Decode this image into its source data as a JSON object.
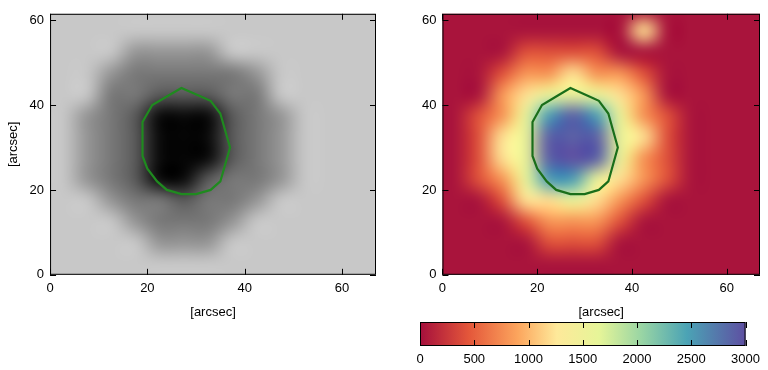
{
  "chart_data": [
    {
      "type": "heatmap",
      "color": "gray",
      "xlabel": "[arcsec]",
      "ylabel": "[arcsec]",
      "xlim": [
        0,
        67
      ],
      "ylim": [
        0,
        61.5
      ],
      "xticks": [
        0,
        20,
        40,
        60
      ],
      "yticks": [
        0,
        20,
        40,
        60
      ],
      "x": [
        2.5,
        7.5,
        12.5,
        17.5,
        22.5,
        27.5,
        32.5,
        37.5,
        42.5,
        47.5,
        52.5,
        57.5,
        62.5,
        67.5
      ],
      "y": [
        2.5,
        7.5,
        12.5,
        17.5,
        22.5,
        27.5,
        32.5,
        37.5,
        42.5,
        47.5,
        52.5,
        57.5,
        62.5
      ],
      "cells": [
        [
          1,
          1,
          1,
          1,
          1,
          1,
          1,
          1,
          1,
          1,
          1,
          1,
          1,
          1
        ],
        [
          1,
          1,
          1,
          1,
          0.75,
          0.75,
          0.75,
          1,
          1,
          1,
          1,
          1,
          1,
          1
        ],
        [
          1,
          1,
          1,
          0.75,
          0.6,
          0.6,
          0.6,
          0.75,
          1,
          1,
          1,
          1,
          1,
          1
        ],
        [
          1,
          1,
          0.75,
          0.6,
          0.6,
          0.45,
          0.6,
          0.6,
          0.75,
          1,
          1,
          1,
          1,
          1
        ],
        [
          1,
          0.75,
          0.6,
          0.45,
          0.05,
          0.05,
          0.45,
          0.6,
          0.6,
          0.75,
          1,
          1,
          1,
          1
        ],
        [
          1,
          0.75,
          0.6,
          0.45,
          0.05,
          0.02,
          0.05,
          0.45,
          0.6,
          0.75,
          1,
          1,
          1,
          1
        ],
        [
          1,
          0.75,
          0.6,
          0.45,
          0.05,
          0.02,
          0.05,
          0.45,
          0.6,
          0.75,
          1,
          1,
          1,
          1
        ],
        [
          1,
          0.75,
          0.6,
          0.45,
          0.05,
          0.05,
          0.05,
          0.45,
          0.6,
          0.75,
          1,
          1,
          1,
          1
        ],
        [
          1,
          1,
          0.6,
          0.6,
          0.45,
          0.45,
          0.45,
          0.6,
          0.6,
          1,
          1,
          1,
          1,
          1
        ],
        [
          1,
          1,
          0.75,
          0.6,
          0.6,
          0.6,
          0.6,
          0.6,
          0.75,
          1,
          1,
          1,
          1,
          1
        ],
        [
          1,
          1,
          1,
          0.75,
          0.75,
          0.75,
          0.75,
          1,
          1,
          1,
          1,
          1,
          1,
          1
        ],
        [
          1,
          1,
          1,
          1,
          1,
          1,
          1,
          1,
          1,
          1,
          1,
          1,
          1,
          1
        ],
        [
          1,
          1,
          1,
          1,
          1,
          1,
          1,
          1,
          1,
          1,
          1,
          1,
          1,
          1
        ]
      ],
      "contour": {
        "color": "#1f8a1f",
        "x": [
          19,
          19,
          21,
          24,
          27,
          29,
          31,
          33,
          35,
          36,
          37,
          36,
          35,
          33,
          30,
          27,
          24,
          22,
          20,
          19
        ],
        "y": [
          31,
          36,
          40,
          42,
          44,
          43,
          42,
          41,
          38,
          34,
          30,
          26,
          22,
          20,
          19,
          19,
          20,
          22,
          25,
          28
        ]
      }
    },
    {
      "type": "heatmap",
      "color": "spectral",
      "xlabel": "[arcsec]",
      "xlim": [
        0,
        67
      ],
      "ylim": [
        0,
        61.5
      ],
      "xticks": [
        0,
        20,
        40,
        60
      ],
      "yticks": [
        0,
        20,
        40,
        60
      ],
      "x": [
        2.5,
        7.5,
        12.5,
        17.5,
        22.5,
        27.5,
        32.5,
        37.5,
        42.5,
        47.5,
        52.5,
        57.5,
        62.5,
        67.5
      ],
      "y": [
        2.5,
        7.5,
        12.5,
        17.5,
        22.5,
        27.5,
        32.5,
        37.5,
        42.5,
        47.5,
        52.5,
        57.5,
        62.5
      ],
      "cells": [
        [
          30,
          30,
          30,
          30,
          30,
          30,
          30,
          30,
          30,
          30,
          30,
          30,
          30,
          30
        ],
        [
          30,
          30,
          30,
          30,
          400,
          400,
          400,
          30,
          30,
          30,
          30,
          30,
          30,
          30
        ],
        [
          30,
          30,
          30,
          400,
          800,
          800,
          800,
          400,
          30,
          30,
          30,
          30,
          30,
          30
        ],
        [
          30,
          30,
          400,
          1200,
          1200,
          1600,
          1200,
          800,
          400,
          30,
          30,
          30,
          30,
          30
        ],
        [
          30,
          400,
          800,
          1600,
          2500,
          2500,
          1600,
          1200,
          800,
          400,
          30,
          30,
          30,
          30
        ],
        [
          30,
          400,
          1200,
          1600,
          2900,
          3000,
          2900,
          1600,
          800,
          400,
          30,
          30,
          30,
          30
        ],
        [
          30,
          400,
          1200,
          1600,
          2900,
          2900,
          2900,
          1600,
          1200,
          400,
          30,
          30,
          30,
          30
        ],
        [
          30,
          400,
          800,
          1600,
          2500,
          2900,
          2500,
          1600,
          800,
          400,
          30,
          30,
          30,
          30
        ],
        [
          30,
          30,
          800,
          1200,
          1600,
          1600,
          1600,
          1200,
          800,
          30,
          30,
          30,
          30,
          30
        ],
        [
          30,
          30,
          400,
          800,
          800,
          1200,
          800,
          800,
          400,
          30,
          30,
          30,
          30,
          30
        ],
        [
          30,
          30,
          30,
          400,
          400,
          400,
          400,
          30,
          30,
          30,
          30,
          30,
          30,
          30
        ],
        [
          30,
          30,
          30,
          30,
          30,
          30,
          30,
          30,
          1200,
          30,
          30,
          30,
          30,
          30
        ],
        [
          30,
          30,
          30,
          30,
          30,
          30,
          30,
          30,
          30,
          30,
          30,
          30,
          30,
          30
        ]
      ],
      "colorbar": {
        "range": [
          0,
          3000
        ],
        "ticks": [
          0,
          500,
          1000,
          1500,
          2000,
          2500,
          3000
        ]
      },
      "contour": {
        "color": "#1a6e1a",
        "x": [
          19,
          19,
          21,
          24,
          27,
          29,
          31,
          33,
          35,
          36,
          37,
          36,
          35,
          33,
          30,
          27,
          24,
          22,
          20,
          19
        ],
        "y": [
          31,
          36,
          40,
          42,
          44,
          43,
          42,
          41,
          38,
          34,
          30,
          26,
          22,
          20,
          19,
          19,
          20,
          22,
          25,
          28
        ]
      }
    }
  ]
}
